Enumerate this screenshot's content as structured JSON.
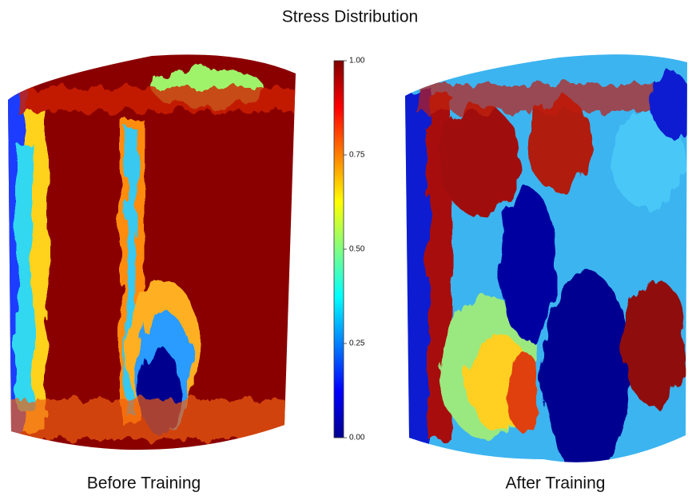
{
  "title": "Stress Distribution",
  "colorbar": {
    "lim": [
      0,
      1
    ],
    "ticks": [
      {
        "value": 0,
        "label": "0.00"
      },
      {
        "value": 0.25,
        "label": "0.25"
      },
      {
        "value": 0.5,
        "label": "0.50"
      },
      {
        "value": 0.75,
        "label": "0.75"
      },
      {
        "value": 1,
        "label": "1.00"
      }
    ]
  },
  "panels": [
    {
      "label": "Before Training"
    },
    {
      "label": "After Training"
    }
  ]
}
